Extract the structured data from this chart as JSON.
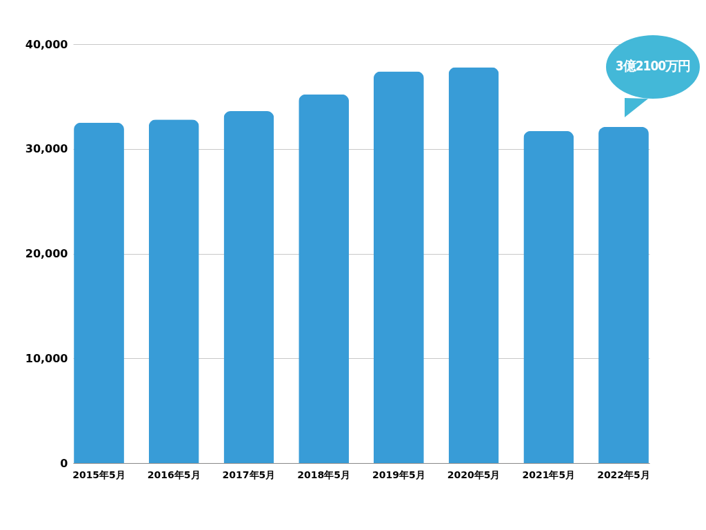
{
  "chart_data": {
    "type": "bar",
    "categories": [
      "2015年5月",
      "2016年5月",
      "2017年5月",
      "2018年5月",
      "2019年5月",
      "2020年5月",
      "2021年5月",
      "2022年5月"
    ],
    "values": [
      32500,
      32800,
      33600,
      35200,
      37400,
      37800,
      31700,
      32100
    ],
    "color": "#389cd7",
    "ylim": [
      0,
      40000
    ],
    "yticks": [
      0,
      {
        "value": 10000,
        "label": "10,000"
      },
      {
        "value": 20000,
        "label": "20,000"
      },
      {
        "value": 30000,
        "label": "30,000"
      },
      {
        "value": 40000,
        "label": "40,000"
      }
    ],
    "grid": "y",
    "annotations": [
      "3億2100万円"
    ]
  }
}
